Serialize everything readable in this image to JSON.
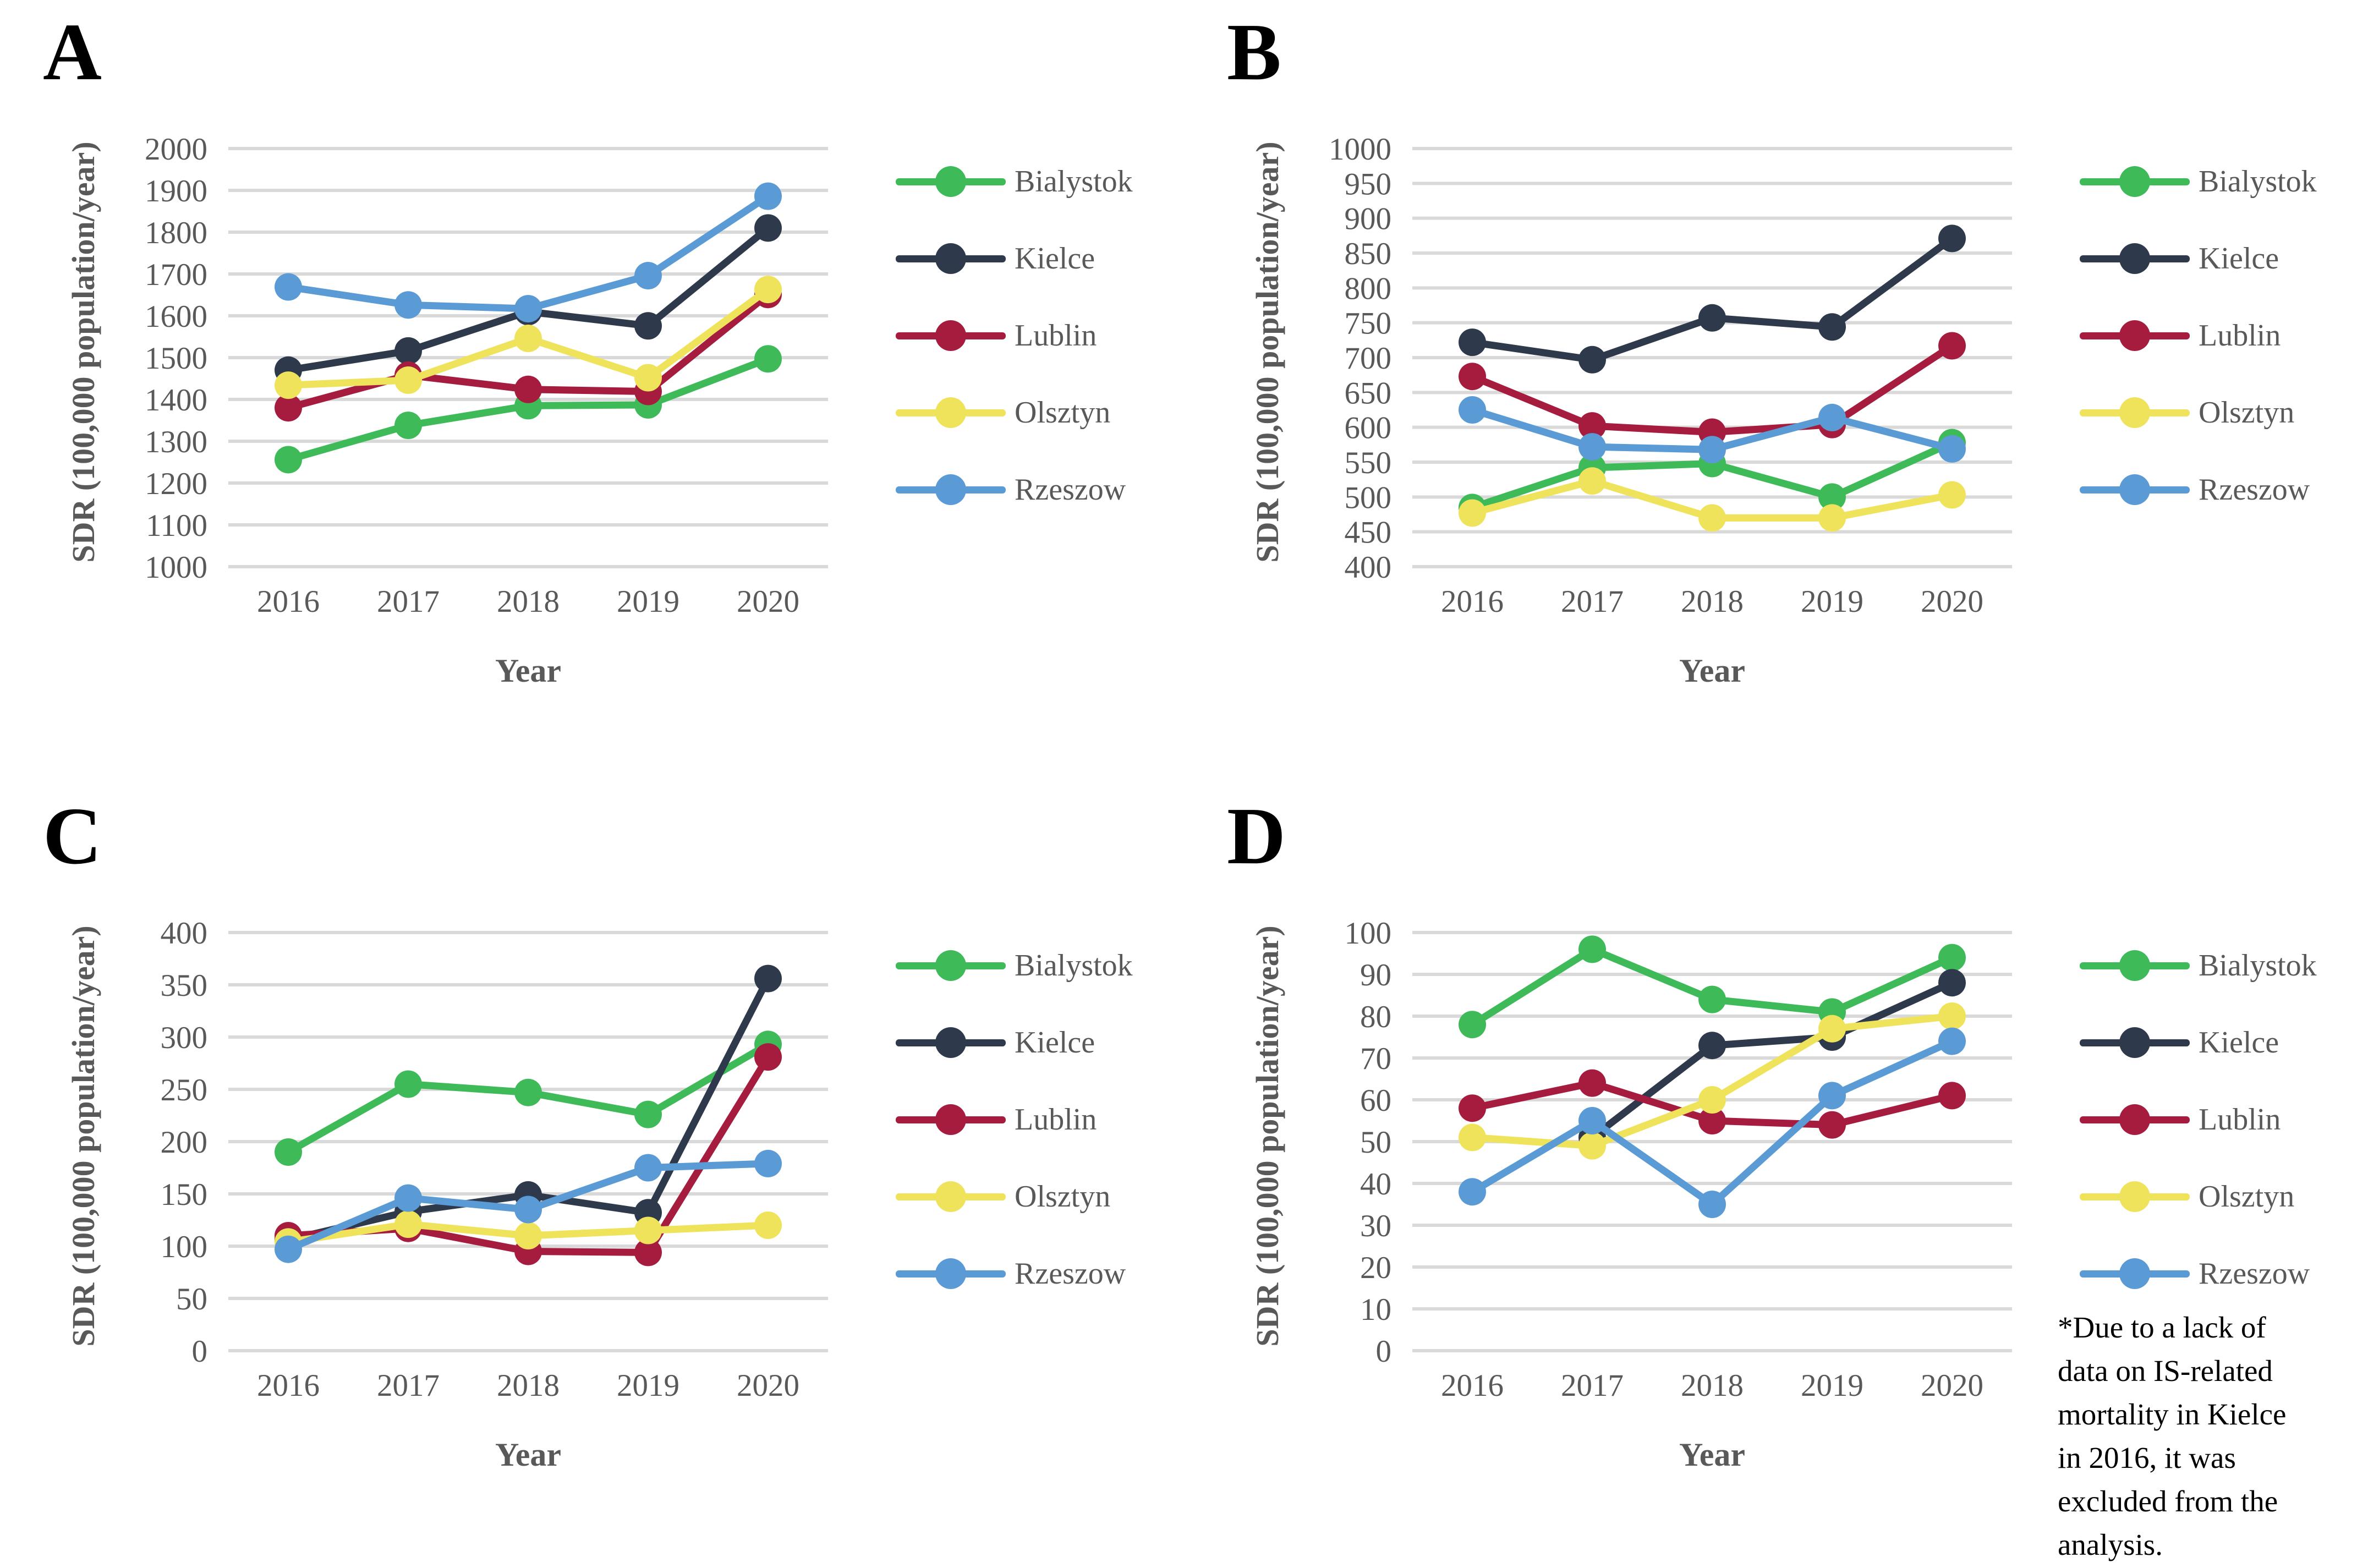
{
  "figure": {
    "background": "#ffffff",
    "text_color": "#595959",
    "gridline_color": "#D9D9D9",
    "note_color": "#000000"
  },
  "chart_data": [
    {
      "type": "line",
      "panel_label": "A",
      "ylabel": "SDR (100,000 population/year)",
      "xlabel": "Year",
      "categories": [
        "2016",
        "2017",
        "2018",
        "2019",
        "2020"
      ],
      "ylim": [
        1000,
        2000
      ],
      "ystep": 100,
      "grid": true,
      "legend_position": "right",
      "series": [
        {
          "name": "Bialystok",
          "color": "#3EBB58",
          "values": [
            1256,
            1338,
            1385,
            1387,
            1497
          ]
        },
        {
          "name": "Kielce",
          "color": "#2E3A4C",
          "values": [
            1470,
            1516,
            1610,
            1576,
            1810
          ]
        },
        {
          "name": "Lublin",
          "color": "#A61C3F",
          "values": [
            1380,
            1458,
            1424,
            1419,
            1651
          ]
        },
        {
          "name": "Olsztyn",
          "color": "#F0E35C",
          "values": [
            1434,
            1446,
            1546,
            1452,
            1663
          ]
        },
        {
          "name": "Rzeszow",
          "color": "#5B9BD5",
          "values": [
            1669,
            1626,
            1617,
            1696,
            1886
          ]
        }
      ]
    },
    {
      "type": "line",
      "panel_label": "B",
      "ylabel": "SDR (100,000 population/year)",
      "xlabel": "Year",
      "categories": [
        "2016",
        "2017",
        "2018",
        "2019",
        "2020"
      ],
      "ylim": [
        400,
        1000
      ],
      "ystep": 50,
      "grid": true,
      "legend_position": "right",
      "series": [
        {
          "name": "Bialystok",
          "color": "#3EBB58",
          "values": [
            485,
            542,
            548,
            500,
            578
          ]
        },
        {
          "name": "Kielce",
          "color": "#2E3A4C",
          "values": [
            722,
            697,
            757,
            744,
            871
          ]
        },
        {
          "name": "Lublin",
          "color": "#A61C3F",
          "values": [
            673,
            602,
            593,
            604,
            717
          ]
        },
        {
          "name": "Olsztyn",
          "color": "#F0E35C",
          "values": [
            477,
            523,
            470,
            470,
            503
          ]
        },
        {
          "name": "Rzeszow",
          "color": "#5B9BD5",
          "values": [
            625,
            572,
            568,
            614,
            569
          ]
        }
      ]
    },
    {
      "type": "line",
      "panel_label": "C",
      "ylabel": "SDR (100,000 population/year)",
      "xlabel": "Year",
      "categories": [
        "2016",
        "2017",
        "2018",
        "2019",
        "2020"
      ],
      "ylim": [
        0,
        400
      ],
      "ystep": 50,
      "grid": true,
      "legend_position": "right",
      "series": [
        {
          "name": "Bialystok",
          "color": "#3EBB58",
          "values": [
            190,
            255,
            247,
            226,
            293
          ]
        },
        {
          "name": "Kielce",
          "color": "#2E3A4C",
          "values": [
            106,
            133,
            149,
            132,
            356
          ]
        },
        {
          "name": "Lublin",
          "color": "#A61C3F",
          "values": [
            110,
            117,
            95,
            94,
            281
          ]
        },
        {
          "name": "Olsztyn",
          "color": "#F0E35C",
          "values": [
            104,
            121,
            110,
            115,
            120
          ]
        },
        {
          "name": "Rzeszow",
          "color": "#5B9BD5",
          "values": [
            97,
            146,
            135,
            175,
            179
          ]
        }
      ]
    },
    {
      "type": "line",
      "panel_label": "D",
      "ylabel": "SDR (100,000 population/year)",
      "xlabel": "Year",
      "categories": [
        "2016",
        "2017",
        "2018",
        "2019",
        "2020"
      ],
      "ylim": [
        0,
        100
      ],
      "ystep": 10,
      "grid": true,
      "legend_position": "right",
      "note": "*Due to a lack of\ndata on IS-related\nmortality in Kielce\nin 2016, it was\nexcluded from the\nanalysis.",
      "series": [
        {
          "name": "Bialystok",
          "color": "#3EBB58",
          "values": [
            78,
            96,
            84,
            81,
            94
          ]
        },
        {
          "name": "Kielce",
          "color": "#2E3A4C",
          "values": [
            null,
            51,
            73,
            75,
            88
          ]
        },
        {
          "name": "Lublin",
          "color": "#A61C3F",
          "values": [
            58,
            64,
            55,
            54,
            61
          ]
        },
        {
          "name": "Olsztyn",
          "color": "#F0E35C",
          "values": [
            51,
            49,
            60,
            77,
            80
          ]
        },
        {
          "name": "Rzeszow",
          "color": "#5B9BD5",
          "values": [
            38,
            55,
            35,
            61,
            74
          ]
        }
      ]
    }
  ]
}
